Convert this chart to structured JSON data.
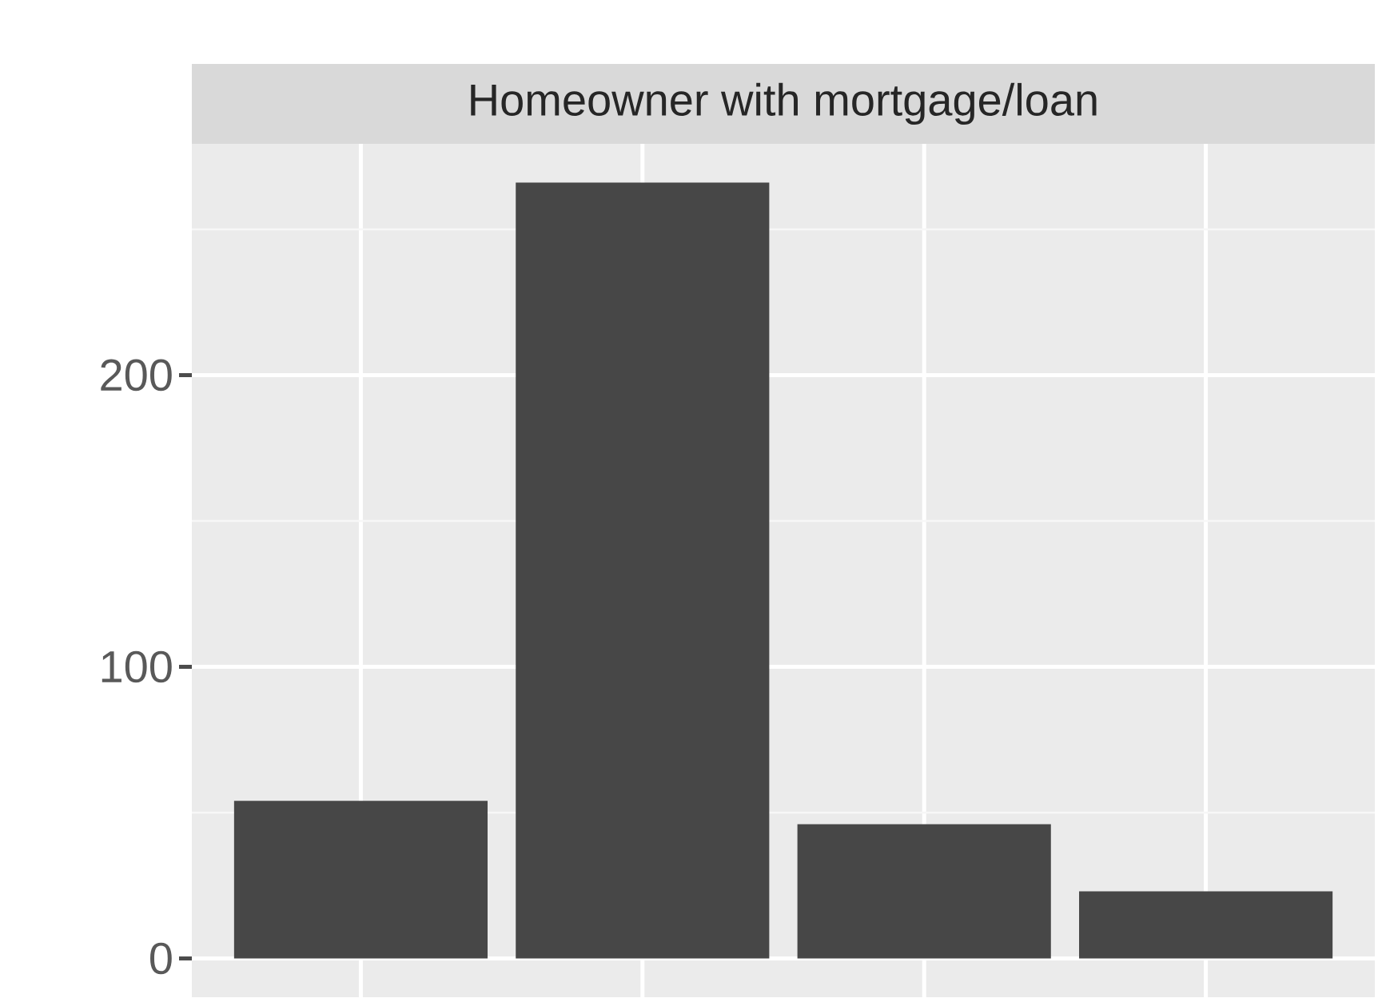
{
  "chart_data": {
    "type": "bar",
    "title": "Homeowner with mortgage/loan",
    "categories": [
      null,
      null,
      null,
      null
    ],
    "values": [
      54,
      266,
      46,
      23
    ],
    "color": "#474747",
    "ylim": [
      -13.3,
      279.3
    ],
    "yticks": [
      0,
      100,
      200
    ],
    "grid": true,
    "tick_labels": "y"
  }
}
